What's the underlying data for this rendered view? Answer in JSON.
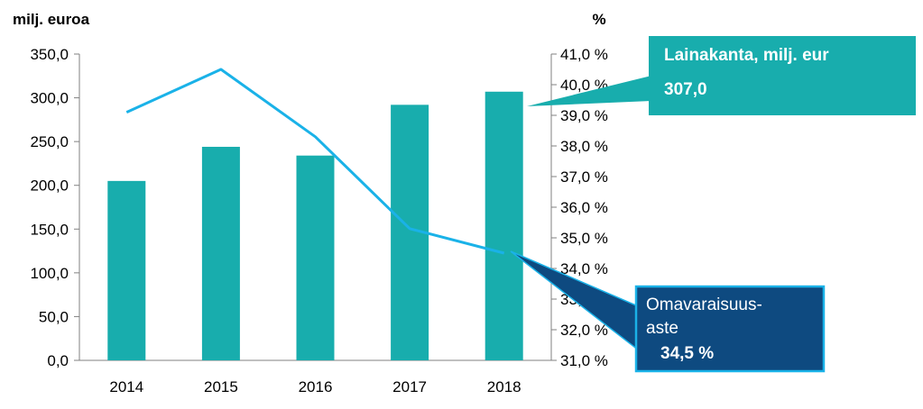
{
  "chart_data": {
    "type": "bar+line",
    "categories": [
      "2014",
      "2015",
      "2016",
      "2017",
      "2018"
    ],
    "left_axis": {
      "unit_label": "milj. euroa",
      "min": 0,
      "max": 350,
      "step": 50,
      "tick_labels": [
        "0,0",
        "50,0",
        "100,0",
        "150,0",
        "200,0",
        "250,0",
        "300,0",
        "350,0"
      ]
    },
    "right_axis": {
      "unit_label": "%",
      "min": 31,
      "max": 41,
      "step": 1,
      "tick_labels": [
        "31,0 %",
        "32,0 %",
        "33,0 %",
        "34,0 %",
        "35,0 %",
        "36,0 %",
        "37,0 %",
        "38,0 %",
        "39,0 %",
        "40,0 %",
        "41,0 %"
      ]
    },
    "series": [
      {
        "type": "bar",
        "axis": "left",
        "values": [
          205,
          244,
          234,
          292,
          307
        ],
        "color": "#18ADAD"
      },
      {
        "type": "line",
        "axis": "right",
        "values": [
          39.1,
          40.5,
          38.3,
          35.3,
          34.5
        ],
        "color": "#1AB2E8"
      }
    ],
    "callouts": {
      "bars": {
        "title": "Lainakanta, milj. eur",
        "value": "307,0",
        "bg": "#18ADAD"
      },
      "line": {
        "title_line1": "Omavaraisuus-",
        "title_line2": "aste",
        "value": "34,5 %",
        "bg": "#0E4A80",
        "border": "#1AB2E8"
      }
    }
  }
}
